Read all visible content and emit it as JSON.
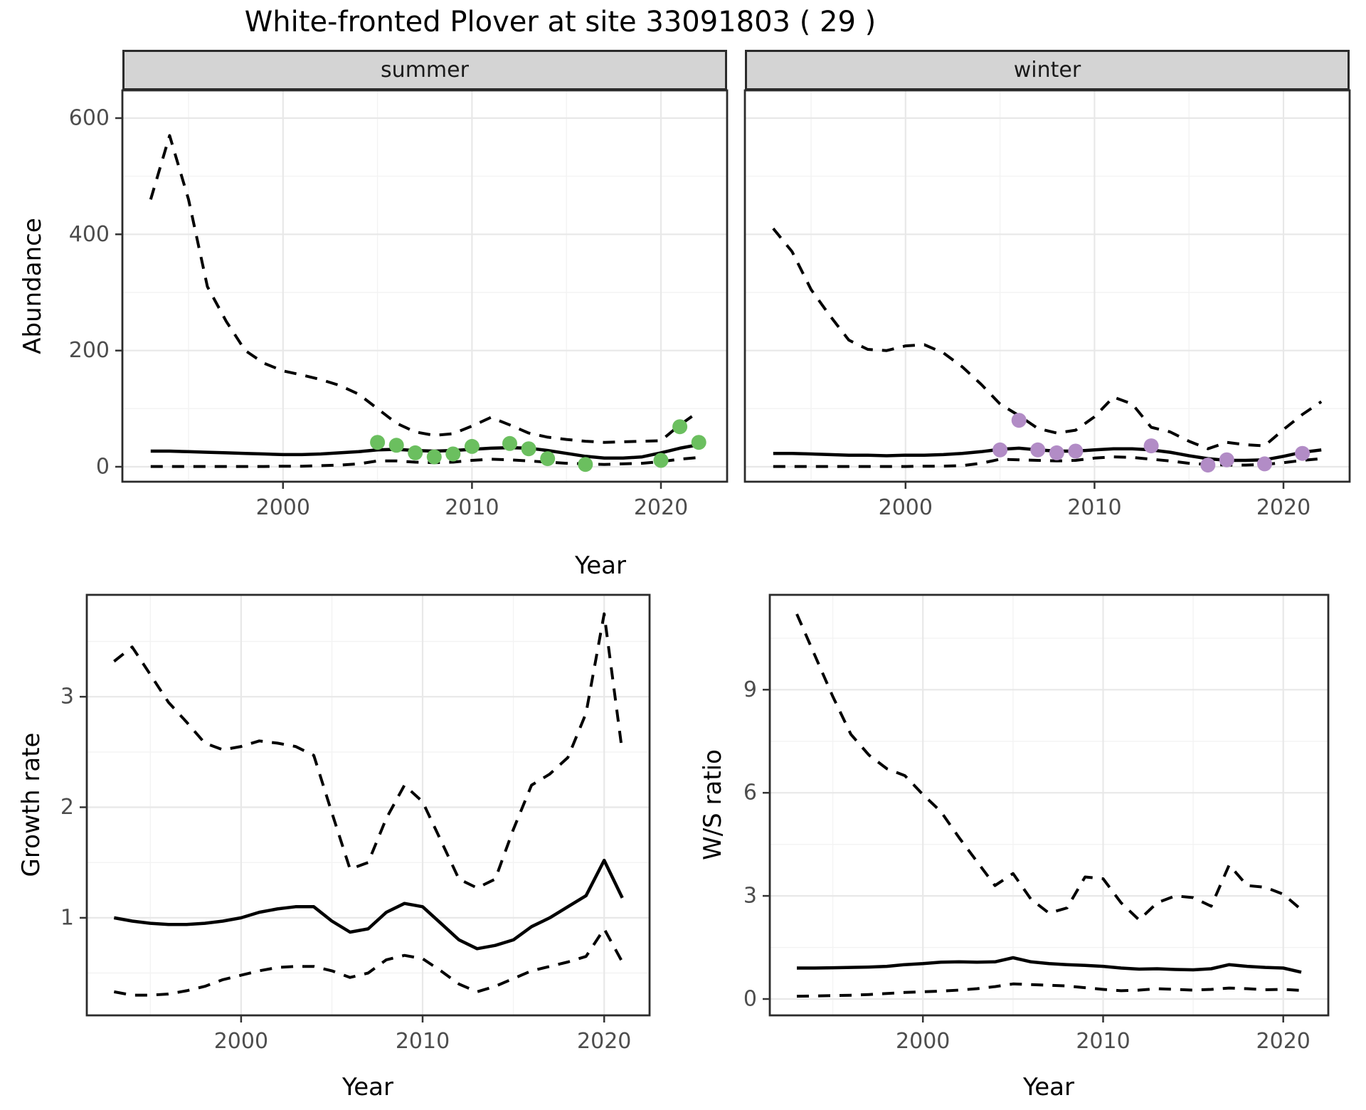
{
  "title": "White-fronted Plover at site 33091803 ( 29 )",
  "labels": {
    "abundance": "Abundance",
    "year": "Year",
    "growth_rate": "Growth rate",
    "ws_ratio": "W/S ratio"
  },
  "colors": {
    "summer_point": "#6bbf5f",
    "winter_point": "#b28cc6",
    "line": "#000000",
    "strip_bg": "#d4d4d4",
    "panel_border": "#2b2b2b",
    "grid_major": "#e8e8e8",
    "grid_minor": "#f3f3f3",
    "tick_text": "#4d4d4d"
  },
  "chart_data": [
    {
      "id": "abundance-summer",
      "type": "line",
      "facet_label": "summer",
      "xlabel": "Year",
      "ylabel": "Abundance",
      "xlim": [
        1991.5,
        2023.5
      ],
      "ylim": [
        -25.7,
        647.7
      ],
      "x_ticks": [
        2000,
        2010,
        2020
      ],
      "y_ticks": [
        0,
        200,
        400,
        600
      ],
      "x_minor": [
        1995,
        2005,
        2015
      ],
      "y_minor": [
        100,
        300,
        500
      ],
      "grid": true,
      "legend": "none",
      "series": [
        {
          "name": "upper_ci",
          "style": "dashed",
          "x": [
            1993,
            1994,
            1995,
            1996,
            1997,
            1998,
            1999,
            2000,
            2001,
            2002,
            2003,
            2004,
            2005,
            2006,
            2007,
            2008,
            2009,
            2010,
            2011,
            2012,
            2013,
            2014,
            2015,
            2016,
            2017,
            2018,
            2019,
            2020,
            2021,
            2022
          ],
          "y": [
            460,
            570,
            460,
            310,
            250,
            200,
            178,
            165,
            158,
            150,
            140,
            125,
            100,
            75,
            60,
            54,
            57,
            70,
            85,
            72,
            58,
            51,
            47,
            44,
            42,
            43,
            44,
            45,
            72,
            95
          ]
        },
        {
          "name": "mean",
          "style": "solid",
          "x": [
            1993,
            1994,
            1995,
            1996,
            1997,
            1998,
            1999,
            2000,
            2001,
            2002,
            2003,
            2004,
            2005,
            2006,
            2007,
            2008,
            2009,
            2010,
            2011,
            2012,
            2013,
            2014,
            2015,
            2016,
            2017,
            2018,
            2019,
            2020,
            2021,
            2022
          ],
          "y": [
            27,
            27,
            26,
            25,
            24,
            23,
            22,
            21,
            21,
            22,
            24,
            26,
            29,
            30,
            28,
            27,
            28,
            30,
            32,
            33,
            32,
            28,
            23,
            18,
            15,
            15,
            17,
            24,
            32,
            38
          ]
        },
        {
          "name": "lower_ci",
          "style": "dashed",
          "x": [
            1993,
            1994,
            1995,
            1996,
            1997,
            1998,
            1999,
            2000,
            2001,
            2002,
            2003,
            2004,
            2005,
            2006,
            2007,
            2008,
            2009,
            2010,
            2011,
            2012,
            2013,
            2014,
            2015,
            2016,
            2017,
            2018,
            2019,
            2020,
            2021,
            2022
          ],
          "y": [
            0.5,
            0.5,
            0.5,
            0.5,
            0.5,
            0.5,
            0.5,
            1,
            1,
            2,
            3,
            5,
            10,
            10,
            8,
            7,
            8,
            11,
            13,
            12,
            10,
            8,
            6,
            5,
            4,
            5,
            6,
            9,
            13,
            16
          ]
        }
      ],
      "points": {
        "name": "observed-counts",
        "color_key": "summer_point",
        "x": [
          2005,
          2006,
          2007,
          2008,
          2009,
          2010,
          2012,
          2013,
          2014,
          2016,
          2020,
          2021,
          2022
        ],
        "y": [
          42,
          37,
          24,
          17,
          22,
          35,
          40,
          31,
          14,
          4,
          11,
          69,
          42
        ]
      }
    },
    {
      "id": "abundance-winter",
      "type": "line",
      "facet_label": "winter",
      "xlabel": "Year",
      "ylabel": "Abundance",
      "xlim": [
        1991.5,
        2023.5
      ],
      "ylim": [
        -25.7,
        647.7
      ],
      "x_ticks": [
        2000,
        2010,
        2020
      ],
      "y_ticks": [
        0,
        200,
        400,
        600
      ],
      "x_minor": [
        1995,
        2005,
        2015
      ],
      "y_minor": [
        100,
        300,
        500
      ],
      "grid": true,
      "legend": "none",
      "series": [
        {
          "name": "upper_ci",
          "style": "dashed",
          "x": [
            1993,
            1994,
            1995,
            1996,
            1997,
            1998,
            1999,
            2000,
            2001,
            2002,
            2003,
            2004,
            2005,
            2006,
            2007,
            2008,
            2009,
            2010,
            2011,
            2012,
            2013,
            2014,
            2015,
            2016,
            2017,
            2018,
            2019,
            2020,
            2021,
            2022
          ],
          "y": [
            410,
            370,
            305,
            260,
            218,
            202,
            200,
            208,
            210,
            196,
            172,
            142,
            108,
            88,
            66,
            58,
            63,
            86,
            120,
            108,
            68,
            60,
            44,
            31,
            42,
            38,
            36,
            64,
            90,
            112
          ]
        },
        {
          "name": "mean",
          "style": "solid",
          "x": [
            1993,
            1994,
            1995,
            1996,
            1997,
            1998,
            1999,
            2000,
            2001,
            2002,
            2003,
            2004,
            2005,
            2006,
            2007,
            2008,
            2009,
            2010,
            2011,
            2012,
            2013,
            2014,
            2015,
            2016,
            2017,
            2018,
            2019,
            2020,
            2021,
            2022
          ],
          "y": [
            23,
            23,
            22,
            21,
            20,
            20,
            19,
            20,
            20,
            21,
            23,
            26,
            30,
            32,
            29,
            27,
            27,
            29,
            31,
            31,
            29,
            25,
            19,
            14,
            11,
            11,
            12,
            18,
            25,
            29
          ]
        },
        {
          "name": "lower_ci",
          "style": "dashed",
          "x": [
            1993,
            1994,
            1995,
            1996,
            1997,
            1998,
            1999,
            2000,
            2001,
            2002,
            2003,
            2004,
            2005,
            2006,
            2007,
            2008,
            2009,
            2010,
            2011,
            2012,
            2013,
            2014,
            2015,
            2016,
            2017,
            2018,
            2019,
            2020,
            2021,
            2022
          ],
          "y": [
            0.5,
            0.5,
            0.5,
            0.5,
            0.5,
            0.5,
            0.5,
            0.5,
            1,
            1,
            2,
            6,
            13,
            12,
            11,
            10,
            11,
            15,
            17,
            16,
            13,
            10,
            6,
            4,
            3,
            3,
            4,
            7,
            11,
            14
          ]
        }
      ],
      "points": {
        "name": "observed-counts",
        "color_key": "winter_point",
        "x": [
          2005,
          2006,
          2007,
          2008,
          2009,
          2013,
          2016,
          2017,
          2019,
          2021
        ],
        "y": [
          29,
          80,
          29,
          24,
          27,
          36,
          3,
          12,
          5,
          23
        ]
      }
    },
    {
      "id": "growth-rate",
      "type": "line",
      "facet_label": null,
      "xlabel": "Year",
      "ylabel": "Growth rate",
      "xlim": [
        1991.5,
        2022.5
      ],
      "ylim": [
        0.117,
        3.922
      ],
      "x_ticks": [
        2000,
        2010,
        2020
      ],
      "y_ticks": [
        1,
        2,
        3
      ],
      "x_minor": [
        1995,
        2005,
        2015
      ],
      "y_minor": [
        0.5,
        1.5,
        2.5,
        3.5
      ],
      "grid": true,
      "legend": "none",
      "series": [
        {
          "name": "upper_ci",
          "style": "dashed",
          "x": [
            1993,
            1994,
            1995,
            1996,
            1997,
            1998,
            1999,
            2000,
            2001,
            2002,
            2003,
            2004,
            2005,
            2006,
            2007,
            2008,
            2009,
            2010,
            2011,
            2012,
            2013,
            2014,
            2015,
            2016,
            2017,
            2018,
            2019,
            2020,
            2021
          ],
          "y": [
            3.32,
            3.45,
            3.2,
            2.95,
            2.77,
            2.58,
            2.52,
            2.55,
            2.6,
            2.58,
            2.55,
            2.47,
            1.95,
            1.44,
            1.5,
            1.9,
            2.2,
            2.05,
            1.7,
            1.35,
            1.27,
            1.35,
            1.8,
            2.2,
            2.3,
            2.45,
            2.85,
            3.75,
            2.5
          ]
        },
        {
          "name": "mean",
          "style": "solid",
          "x": [
            1993,
            1994,
            1995,
            1996,
            1997,
            1998,
            1999,
            2000,
            2001,
            2002,
            2003,
            2004,
            2005,
            2006,
            2007,
            2008,
            2009,
            2010,
            2011,
            2012,
            2013,
            2014,
            2015,
            2016,
            2017,
            2018,
            2019,
            2020,
            2021
          ],
          "y": [
            1.0,
            0.97,
            0.95,
            0.94,
            0.94,
            0.95,
            0.97,
            1.0,
            1.05,
            1.08,
            1.1,
            1.1,
            0.97,
            0.87,
            0.9,
            1.05,
            1.13,
            1.1,
            0.95,
            0.8,
            0.72,
            0.75,
            0.8,
            0.92,
            1.0,
            1.1,
            1.2,
            1.52,
            1.18
          ]
        },
        {
          "name": "lower_ci",
          "style": "dashed",
          "x": [
            1993,
            1994,
            1995,
            1996,
            1997,
            1998,
            1999,
            2000,
            2001,
            2002,
            2003,
            2004,
            2005,
            2006,
            2007,
            2008,
            2009,
            2010,
            2011,
            2012,
            2013,
            2014,
            2015,
            2016,
            2017,
            2018,
            2019,
            2020,
            2021
          ],
          "y": [
            0.33,
            0.3,
            0.3,
            0.31,
            0.34,
            0.38,
            0.44,
            0.48,
            0.52,
            0.55,
            0.56,
            0.56,
            0.52,
            0.46,
            0.5,
            0.62,
            0.66,
            0.63,
            0.52,
            0.4,
            0.33,
            0.38,
            0.45,
            0.52,
            0.56,
            0.6,
            0.65,
            0.9,
            0.6
          ]
        }
      ],
      "points": null
    },
    {
      "id": "ws-ratio",
      "type": "line",
      "facet_label": null,
      "xlabel": "Year",
      "ylabel": "W/S ratio",
      "xlim": [
        1991.5,
        2022.5
      ],
      "ylim": [
        -0.476,
        11.76
      ],
      "x_ticks": [
        2000,
        2010,
        2020
      ],
      "y_ticks": [
        0,
        3,
        6,
        9
      ],
      "x_minor": [
        1995,
        2005,
        2015
      ],
      "y_minor": [
        1.5,
        4.5,
        7.5,
        10.5
      ],
      "grid": true,
      "legend": "none",
      "series": [
        {
          "name": "upper_ci",
          "style": "dashed",
          "x": [
            1993,
            1994,
            1995,
            1996,
            1997,
            1998,
            1999,
            2000,
            2001,
            2002,
            2003,
            2004,
            2005,
            2006,
            2007,
            2008,
            2009,
            2010,
            2011,
            2012,
            2013,
            2014,
            2015,
            2016,
            2017,
            2018,
            2019,
            2020,
            2021
          ],
          "y": [
            11.2,
            10.0,
            8.8,
            7.7,
            7.1,
            6.7,
            6.5,
            5.95,
            5.45,
            4.7,
            4.0,
            3.3,
            3.65,
            2.9,
            2.5,
            2.65,
            3.55,
            3.5,
            2.8,
            2.3,
            2.8,
            3.0,
            2.95,
            2.7,
            3.9,
            3.3,
            3.25,
            3.05,
            2.6
          ]
        },
        {
          "name": "mean",
          "style": "solid",
          "x": [
            1993,
            1994,
            1995,
            1996,
            1997,
            1998,
            1999,
            2000,
            2001,
            2002,
            2003,
            2004,
            2005,
            2006,
            2007,
            2008,
            2009,
            2010,
            2011,
            2012,
            2013,
            2014,
            2015,
            2016,
            2017,
            2018,
            2019,
            2020,
            2021
          ],
          "y": [
            0.9,
            0.9,
            0.91,
            0.92,
            0.93,
            0.95,
            1.0,
            1.03,
            1.07,
            1.08,
            1.07,
            1.08,
            1.2,
            1.08,
            1.03,
            1.0,
            0.98,
            0.95,
            0.9,
            0.87,
            0.88,
            0.86,
            0.85,
            0.88,
            1.0,
            0.95,
            0.92,
            0.9,
            0.78
          ]
        },
        {
          "name": "lower_ci",
          "style": "dashed",
          "x": [
            1993,
            1994,
            1995,
            1996,
            1997,
            1998,
            1999,
            2000,
            2001,
            2002,
            2003,
            2004,
            2005,
            2006,
            2007,
            2008,
            2009,
            2010,
            2011,
            2012,
            2013,
            2014,
            2015,
            2016,
            2017,
            2018,
            2019,
            2020,
            2021
          ],
          "y": [
            0.08,
            0.09,
            0.1,
            0.11,
            0.13,
            0.16,
            0.19,
            0.21,
            0.23,
            0.26,
            0.3,
            0.36,
            0.44,
            0.42,
            0.4,
            0.38,
            0.33,
            0.28,
            0.24,
            0.26,
            0.3,
            0.28,
            0.26,
            0.28,
            0.32,
            0.3,
            0.27,
            0.28,
            0.25
          ]
        }
      ],
      "points": null
    }
  ]
}
